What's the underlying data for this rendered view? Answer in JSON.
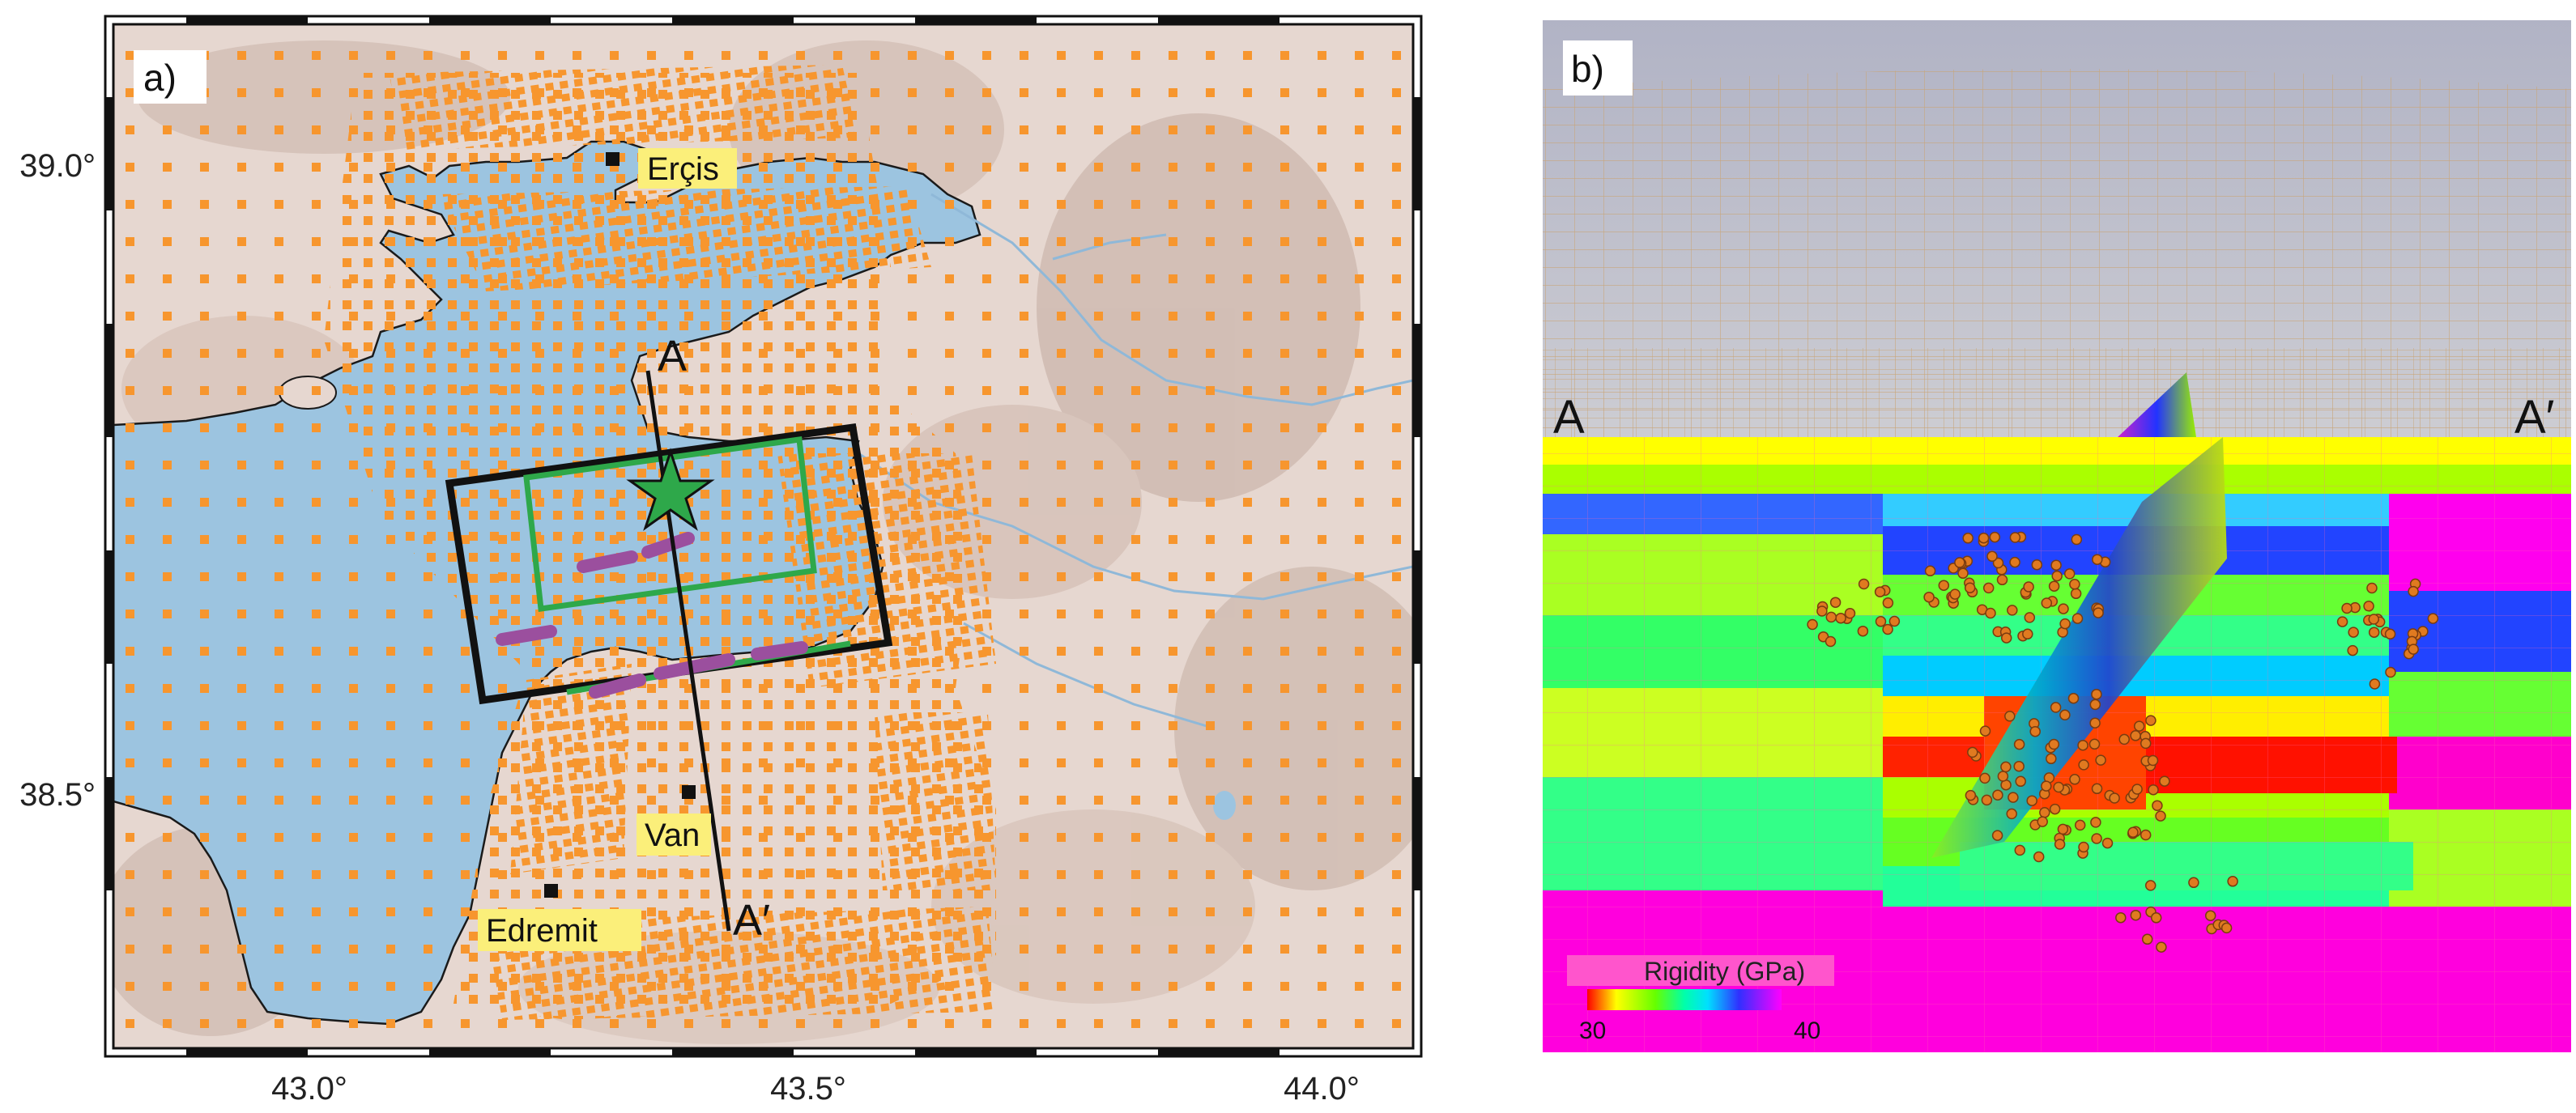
{
  "panel_a": {
    "label": "a)",
    "lat_ticks": [
      "39.0°",
      "38.5°"
    ],
    "lon_ticks": [
      "43.0°",
      "43.5°",
      "44.0°"
    ],
    "places": [
      {
        "name": "Erçis"
      },
      {
        "name": "Van"
      },
      {
        "name": "Edremit"
      }
    ],
    "profile": {
      "start": "A",
      "end": "A′"
    },
    "colors": {
      "lake": "#9cc4e0",
      "grid_points": "#f7962e",
      "model_box": "#111111",
      "fault_box": "#2ea84a",
      "fault_trace": "#9b4f9e",
      "epicenter": "#2ea84a",
      "label_bg": "#fbef7a"
    }
  },
  "panel_b": {
    "label": "b)",
    "profile": {
      "start": "A",
      "end": "A′"
    },
    "legend": {
      "title": "Rigidity (GPa)",
      "min": "30",
      "max": "40"
    },
    "colors": {
      "sky": "#b7b9c8",
      "mesh": "#c8a070",
      "hypocenters": "#e07a20",
      "base": "#ff00dd"
    }
  }
}
